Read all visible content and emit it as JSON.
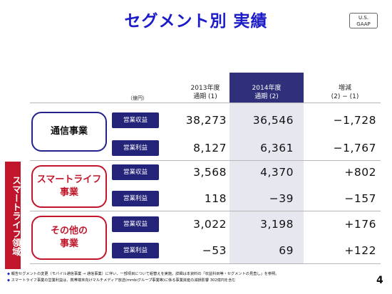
{
  "header": {
    "title": "セグメント別 実績",
    "gaap_line1": "U.S.",
    "gaap_line2": "GAAP"
  },
  "table": {
    "unit": "（億円）",
    "columns": [
      {
        "line1": "2013年度",
        "line2": "通期 (1)"
      },
      {
        "line1": "2014年度",
        "line2": "通期 (2)"
      },
      {
        "line1": "増減",
        "line2": "(2) − (1)"
      }
    ],
    "segments": [
      {
        "name": "通信事業",
        "rows": [
          {
            "metric": "営業収益",
            "values": [
              "38,273",
              "36,546",
              "−1,728"
            ]
          },
          {
            "metric": "営業利益",
            "values": [
              "8,127",
              "6,361",
              "−1,767"
            ]
          }
        ]
      },
      {
        "name": "スマートライフ\n事業",
        "rows": [
          {
            "metric": "営業収益",
            "values": [
              "3,568",
              "4,370",
              "+802"
            ]
          },
          {
            "metric": "営業利益",
            "values": [
              "118",
              "−39",
              "−157"
            ]
          }
        ]
      },
      {
        "name": "その他の\n事業",
        "rows": [
          {
            "metric": "営業収益",
            "values": [
              "3,022",
              "3,198",
              "+176"
            ]
          },
          {
            "metric": "営業利益",
            "values": [
              "−53",
              "69",
              "+122"
            ]
          }
        ]
      }
    ]
  },
  "sidebar": {
    "label": "スマートライフ領域"
  },
  "footnotes": [
    "報告セグメントの変更（モバイル通信事業 → 通信事業）に伴い、一部項目について組替えを実施。詳細は本資料の「収益科目等・セグメントの見直し」を参照。",
    "スマートライフ事業の営業利益は、携帯端末向けマルチメディア放送(mmbiグループ事業等)に係る事業資産の減損影響 302億円を含む"
  ],
  "page_number": "4",
  "colors": {
    "title": "#1b1bc8",
    "navy": "#23237a",
    "red": "#c0152a",
    "highlight_column": "#e7e7ef"
  }
}
